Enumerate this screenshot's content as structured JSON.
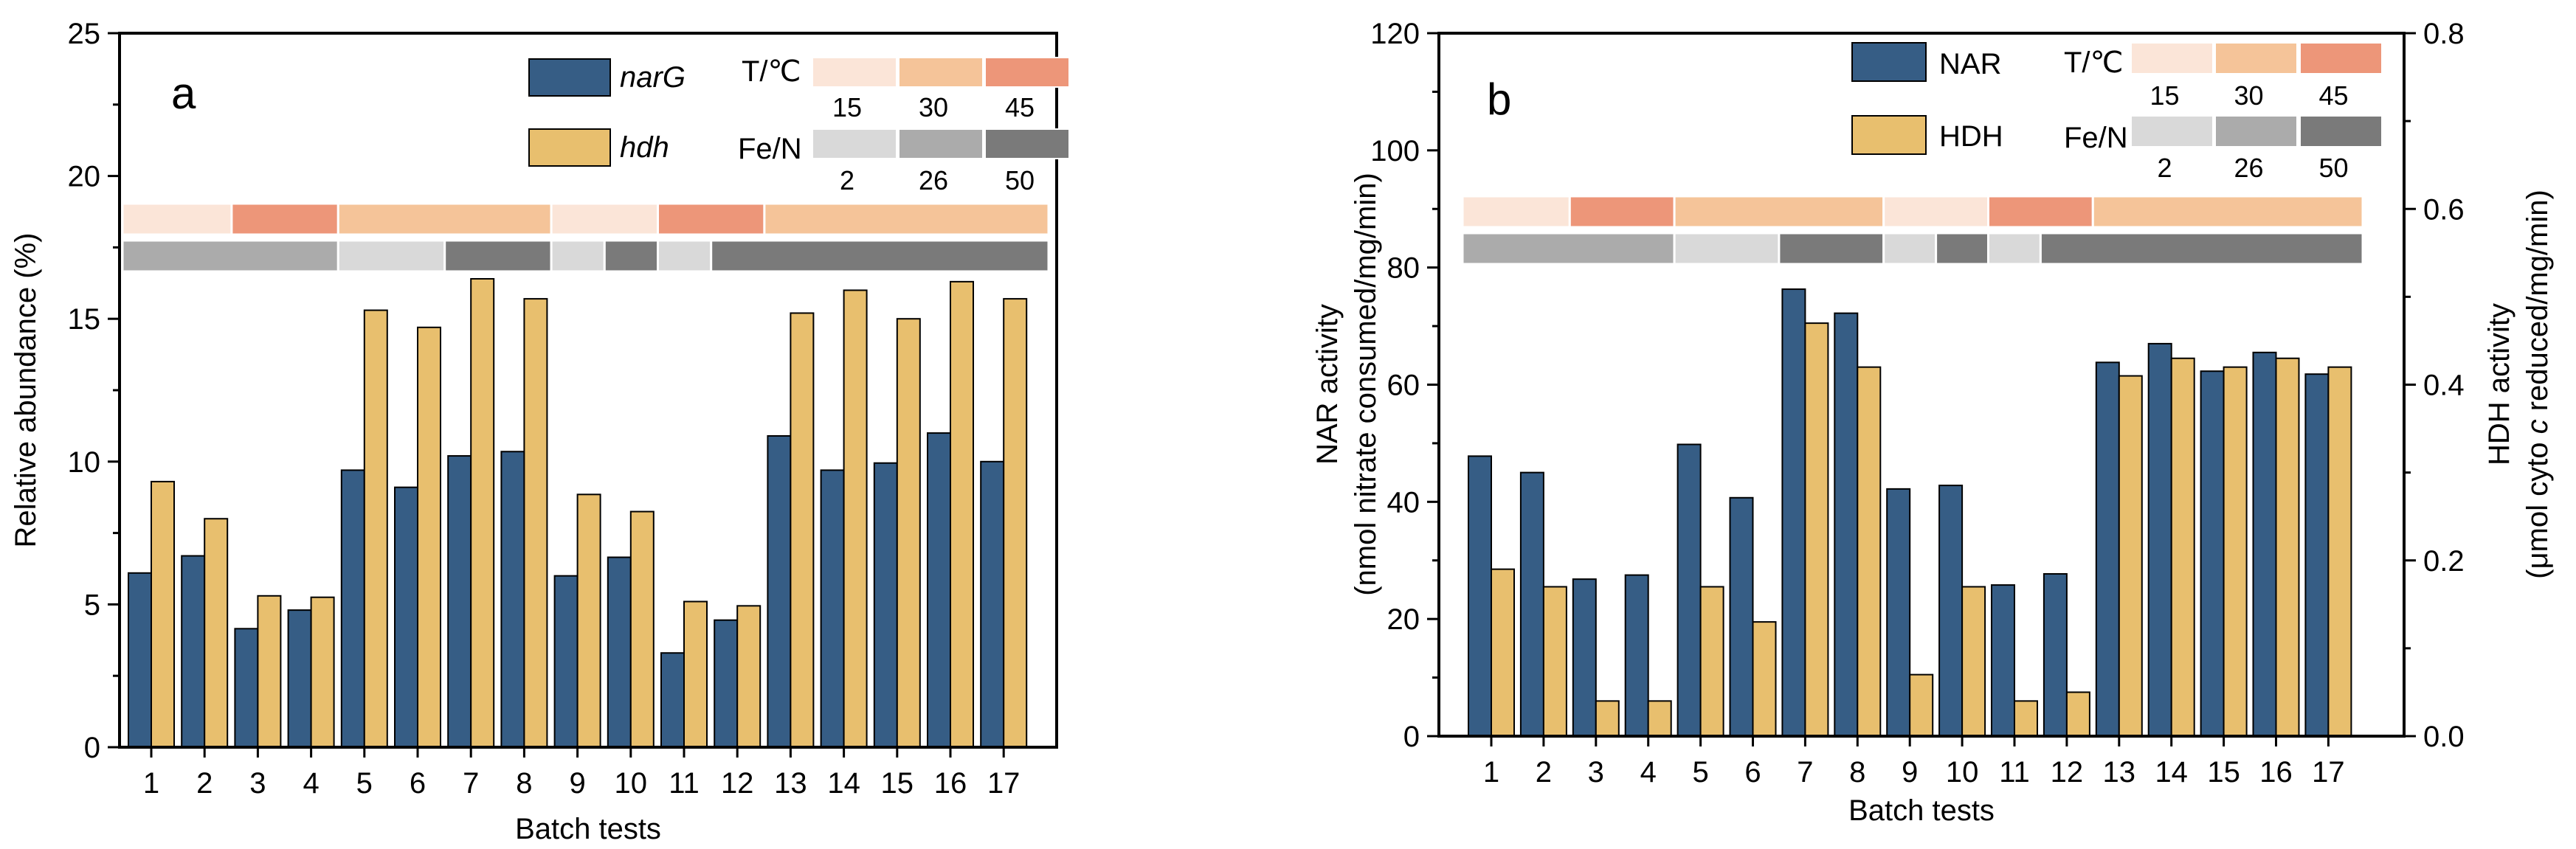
{
  "chart_data": [
    {
      "panel": "a",
      "type": "bar",
      "title": "",
      "xlabel": "Batch tests",
      "ylabel": "Relative abundance (%)",
      "ylim": [
        0,
        25
      ],
      "yticks": [
        0,
        5,
        10,
        15,
        20,
        25
      ],
      "categories": [
        "1",
        "2",
        "3",
        "4",
        "5",
        "6",
        "7",
        "8",
        "9",
        "10",
        "11",
        "12",
        "13",
        "14",
        "15",
        "16",
        "17"
      ],
      "series": [
        {
          "name": "narG",
          "color": "#365d85",
          "values": [
            6.1,
            6.7,
            4.15,
            4.8,
            9.7,
            9.1,
            10.2,
            10.35,
            6.0,
            6.65,
            3.3,
            4.45,
            10.9,
            9.7,
            9.95,
            11.0,
            10.0
          ]
        },
        {
          "name": "hdh",
          "color": "#e8bf6e",
          "values": [
            9.3,
            8.0,
            5.3,
            5.25,
            15.3,
            14.7,
            16.4,
            15.7,
            8.85,
            8.25,
            5.1,
            4.95,
            15.2,
            16.0,
            15.0,
            16.3,
            15.7
          ]
        }
      ],
      "legend": {
        "position": "top-right",
        "labels": [
          "narG",
          "hdh"
        ]
      },
      "temperature_legend": {
        "title": "T/℃",
        "levels": [
          "15",
          "30",
          "45"
        ],
        "colors": [
          "#fbe5d8",
          "#f5c499",
          "#ed9679"
        ]
      },
      "fe_n_legend": {
        "title": "Fe/N",
        "levels": [
          "2",
          "26",
          "50"
        ],
        "colors": [
          "#d9d9d9",
          "#ababab",
          "#7a7a7a"
        ]
      },
      "temperature_strip": [
        "15",
        "15",
        "45",
        "45",
        "30",
        "30",
        "30",
        "30",
        "15",
        "15",
        "45",
        "45",
        "30",
        "30",
        "30",
        "30",
        "30"
      ],
      "fe_n_strip": [
        "26",
        "26",
        "26",
        "26",
        "2",
        "2",
        "50",
        "50",
        "2",
        "50",
        "2",
        "50",
        "50",
        "50",
        "50",
        "50",
        "50"
      ]
    },
    {
      "panel": "b",
      "type": "bar",
      "title": "",
      "xlabel": "Batch tests",
      "ylabel": "NAR activity",
      "ylabel_line2": "(nmol nitrate consumed/mg/min)",
      "ylim": [
        0,
        120
      ],
      "yticks": [
        0,
        20,
        40,
        60,
        80,
        100,
        120
      ],
      "y2label": "HDH activity",
      "y2label_line2_pre": "(μmol cyto ",
      "y2label_line2_italic": "c",
      "y2label_line2_post": " reduced/mg/min)",
      "y2lim": [
        0,
        0.8
      ],
      "y2ticks": [
        "0.0",
        "0.2",
        "0.4",
        "0.6",
        "0.8"
      ],
      "categories": [
        "1",
        "2",
        "3",
        "4",
        "5",
        "6",
        "7",
        "8",
        "9",
        "10",
        "11",
        "12",
        "13",
        "14",
        "15",
        "16",
        "17"
      ],
      "series": [
        {
          "name": "NAR",
          "axis": "left",
          "color": "#365d85",
          "values": [
            47.8,
            45.0,
            26.8,
            27.5,
            49.8,
            40.7,
            76.3,
            72.2,
            42.2,
            42.8,
            25.8,
            27.7,
            63.8,
            67.0,
            62.3,
            65.5,
            61.8
          ]
        },
        {
          "name": "HDH",
          "axis": "right",
          "color": "#e8bf6e",
          "values": [
            0.19,
            0.17,
            0.04,
            0.04,
            0.17,
            0.13,
            0.47,
            0.42,
            0.07,
            0.17,
            0.04,
            0.05,
            0.41,
            0.43,
            0.42,
            0.43,
            0.42
          ]
        }
      ],
      "legend": {
        "position": "top-right",
        "labels": [
          "NAR",
          "HDH"
        ]
      },
      "temperature_legend": {
        "title": "T/℃",
        "levels": [
          "15",
          "30",
          "45"
        ],
        "colors": [
          "#fbe5d8",
          "#f5c499",
          "#ed9679"
        ]
      },
      "fe_n_legend": {
        "title": "Fe/N",
        "levels": [
          "2",
          "26",
          "50"
        ],
        "colors": [
          "#d9d9d9",
          "#ababab",
          "#7a7a7a"
        ]
      },
      "temperature_strip": [
        "15",
        "15",
        "45",
        "45",
        "30",
        "30",
        "30",
        "30",
        "15",
        "15",
        "45",
        "45",
        "30",
        "30",
        "30",
        "30",
        "30"
      ],
      "fe_n_strip": [
        "26",
        "26",
        "26",
        "26",
        "2",
        "2",
        "50",
        "50",
        "2",
        "50",
        "2",
        "50",
        "50",
        "50",
        "50",
        "50",
        "50"
      ]
    }
  ]
}
